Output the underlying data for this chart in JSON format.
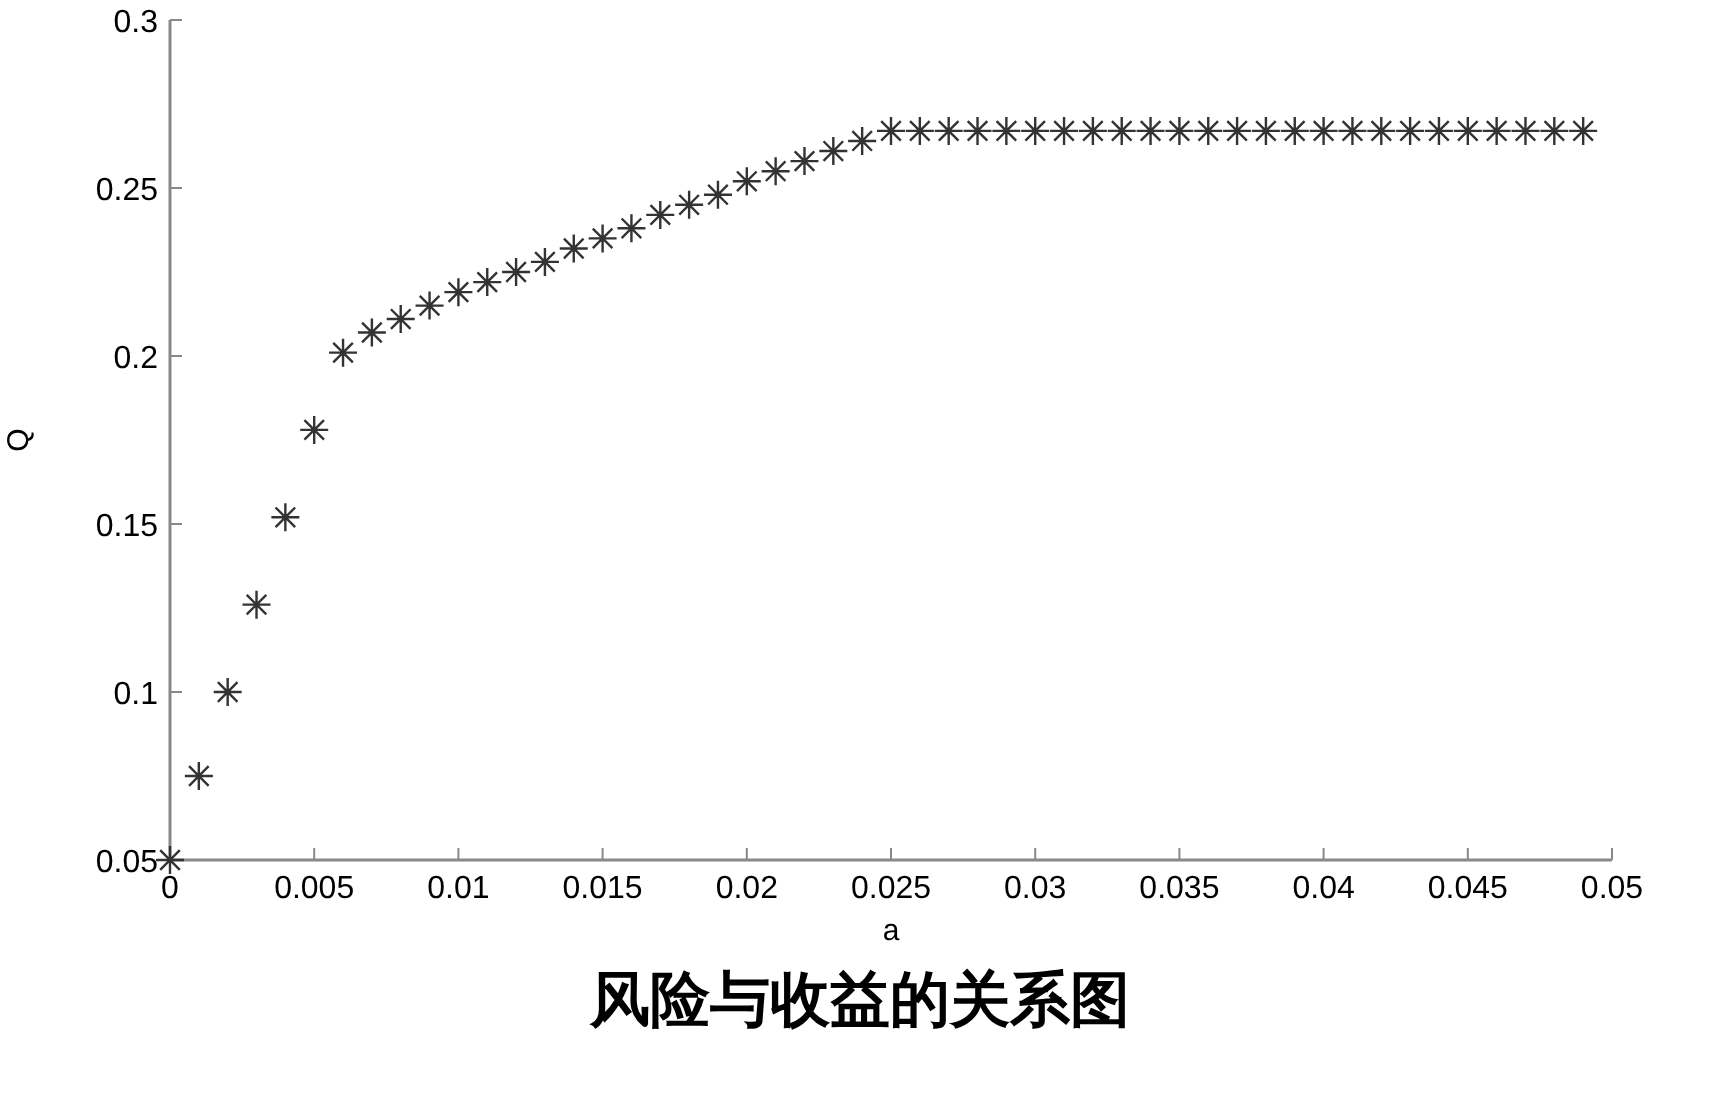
{
  "chart_data": {
    "type": "scatter",
    "title": "风险与收益的关系图",
    "xlabel": "a",
    "ylabel": "Q",
    "x": [
      0,
      0.001,
      0.002,
      0.003,
      0.004,
      0.005,
      0.006,
      0.007,
      0.008,
      0.009,
      0.01,
      0.011,
      0.012,
      0.013,
      0.014,
      0.015,
      0.016,
      0.017,
      0.018,
      0.019,
      0.02,
      0.021,
      0.022,
      0.023,
      0.024,
      0.025,
      0.026,
      0.027,
      0.028,
      0.029,
      0.03,
      0.031,
      0.032,
      0.033,
      0.034,
      0.035,
      0.036,
      0.037,
      0.038,
      0.039,
      0.04,
      0.041,
      0.042,
      0.043,
      0.044,
      0.045,
      0.046,
      0.047,
      0.048,
      0.049
    ],
    "values": [
      0.05,
      0.075,
      0.1,
      0.126,
      0.152,
      0.178,
      0.201,
      0.207,
      0.211,
      0.215,
      0.219,
      0.222,
      0.225,
      0.228,
      0.232,
      0.235,
      0.238,
      0.242,
      0.245,
      0.248,
      0.252,
      0.255,
      0.258,
      0.261,
      0.264,
      0.267,
      0.267,
      0.267,
      0.267,
      0.267,
      0.267,
      0.267,
      0.267,
      0.267,
      0.267,
      0.267,
      0.267,
      0.267,
      0.267,
      0.267,
      0.267,
      0.267,
      0.267,
      0.267,
      0.267,
      0.267,
      0.267,
      0.267,
      0.267,
      0.267
    ],
    "color": "#333333",
    "marker": "cross",
    "xlim": [
      0,
      0.05
    ],
    "xticks": [
      0,
      0.005,
      0.01,
      0.015,
      0.02,
      0.025,
      0.03,
      0.035,
      0.04,
      0.045,
      0.05
    ],
    "ylim": [
      0.05,
      0.3
    ],
    "yticks": [
      0.05,
      0.1,
      0.15,
      0.2,
      0.25,
      0.3
    ]
  }
}
